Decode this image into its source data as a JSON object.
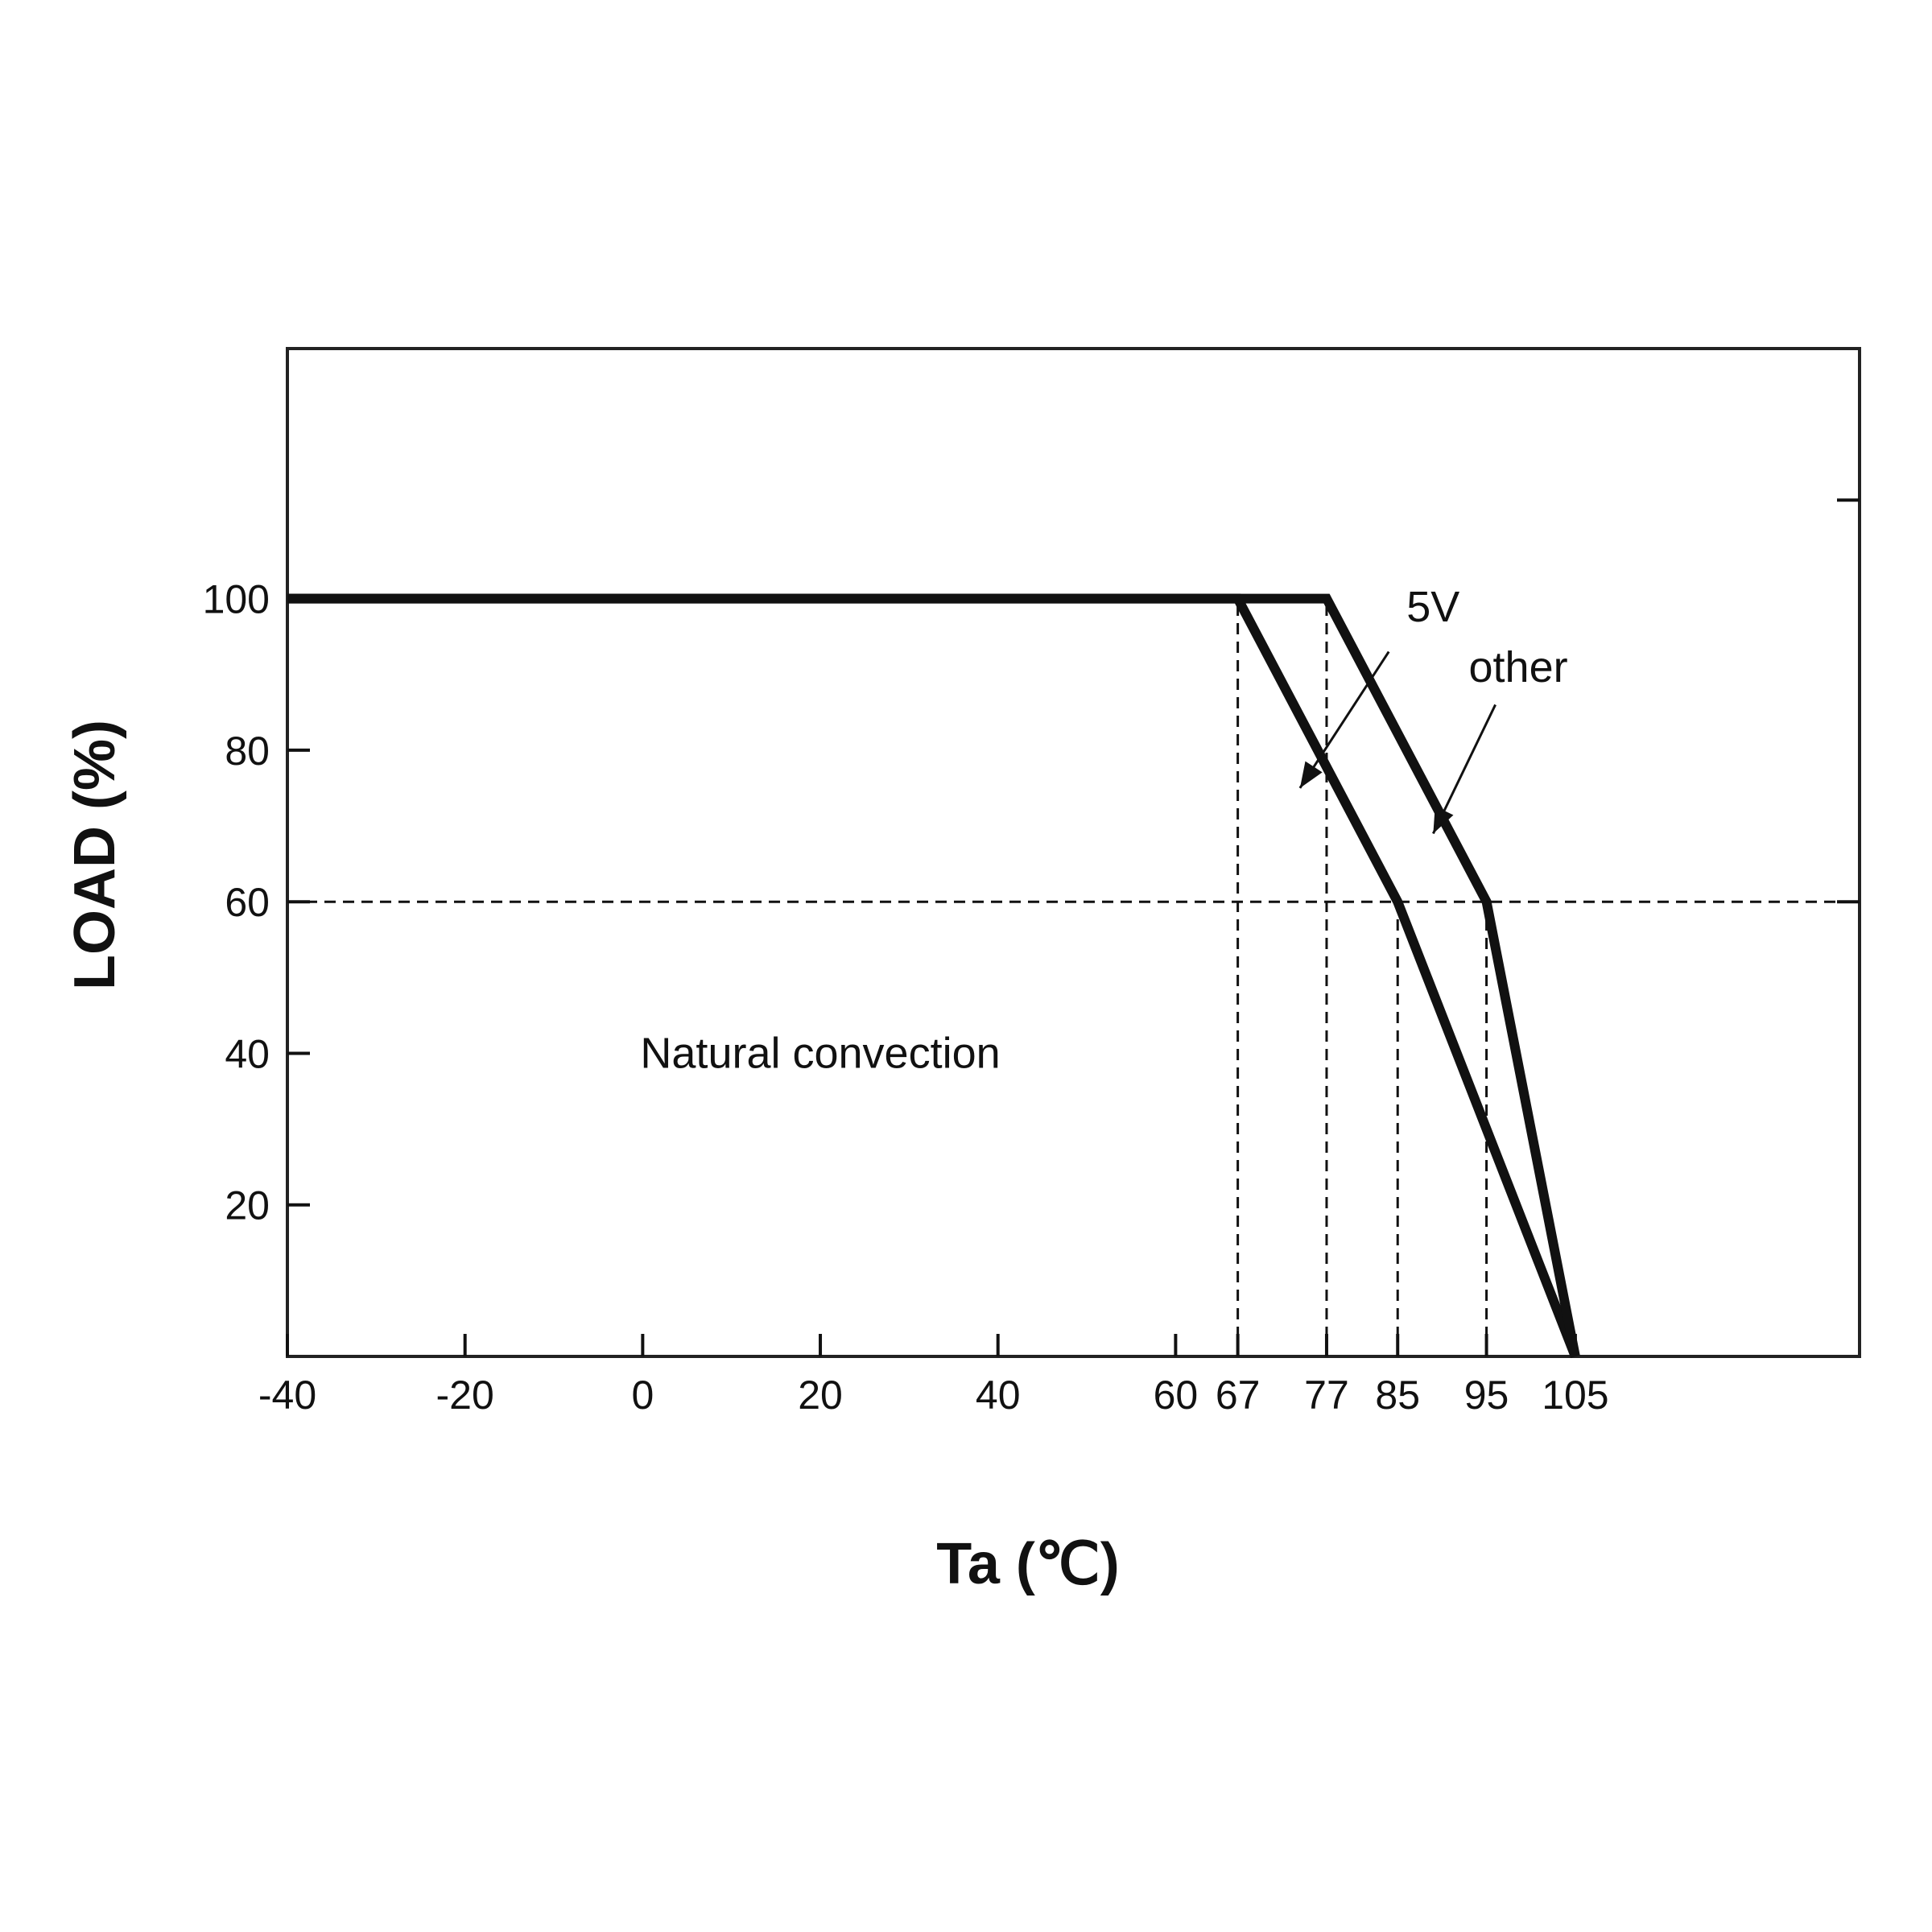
{
  "chart_data": {
    "type": "line",
    "title": "",
    "xlabel": "Ta (℃)",
    "ylabel": "LOAD (%)",
    "xlim": [
      -40,
      137
    ],
    "ylim": [
      0,
      133
    ],
    "x_ticks": [
      -40,
      -20,
      0,
      20,
      40,
      60,
      67,
      77,
      85,
      95,
      105
    ],
    "y_ticks": [
      20,
      40,
      60,
      80,
      100
    ],
    "grid": false,
    "legend": "none",
    "series": [
      {
        "name": "5V",
        "x": [
          -40,
          67,
          85,
          105
        ],
        "y": [
          100,
          100,
          60,
          0
        ]
      },
      {
        "name": "other",
        "x": [
          -40,
          77,
          95,
          105
        ],
        "y": [
          100,
          100,
          60,
          0
        ]
      }
    ],
    "reference_lines": [
      {
        "orientation": "horizontal",
        "value": 60,
        "from": -40,
        "to": 137
      },
      {
        "orientation": "vertical",
        "value": 67,
        "from": 0,
        "to": 100
      },
      {
        "orientation": "vertical",
        "value": 77,
        "from": 0,
        "to": 100
      },
      {
        "orientation": "vertical",
        "value": 85,
        "from": 0,
        "to": 60
      },
      {
        "orientation": "vertical",
        "value": 95,
        "from": 0,
        "to": 60
      }
    ],
    "annotations": [
      {
        "text": "Natural convection",
        "x": 20,
        "y": 40
      }
    ],
    "callouts": [
      {
        "text": "5V",
        "label_at": [
          86,
          97
        ],
        "arrow_from": [
          84,
          93
        ],
        "arrow_to": [
          74,
          75
        ]
      },
      {
        "text": "other",
        "label_at": [
          93,
          89
        ],
        "arrow_from": [
          96,
          86
        ],
        "arrow_to": [
          89,
          69
        ]
      }
    ],
    "right_ticks": [
      60,
      113
    ],
    "colors": {
      "line": "#111111",
      "frame": "#222222",
      "background": "#ffffff"
    }
  }
}
